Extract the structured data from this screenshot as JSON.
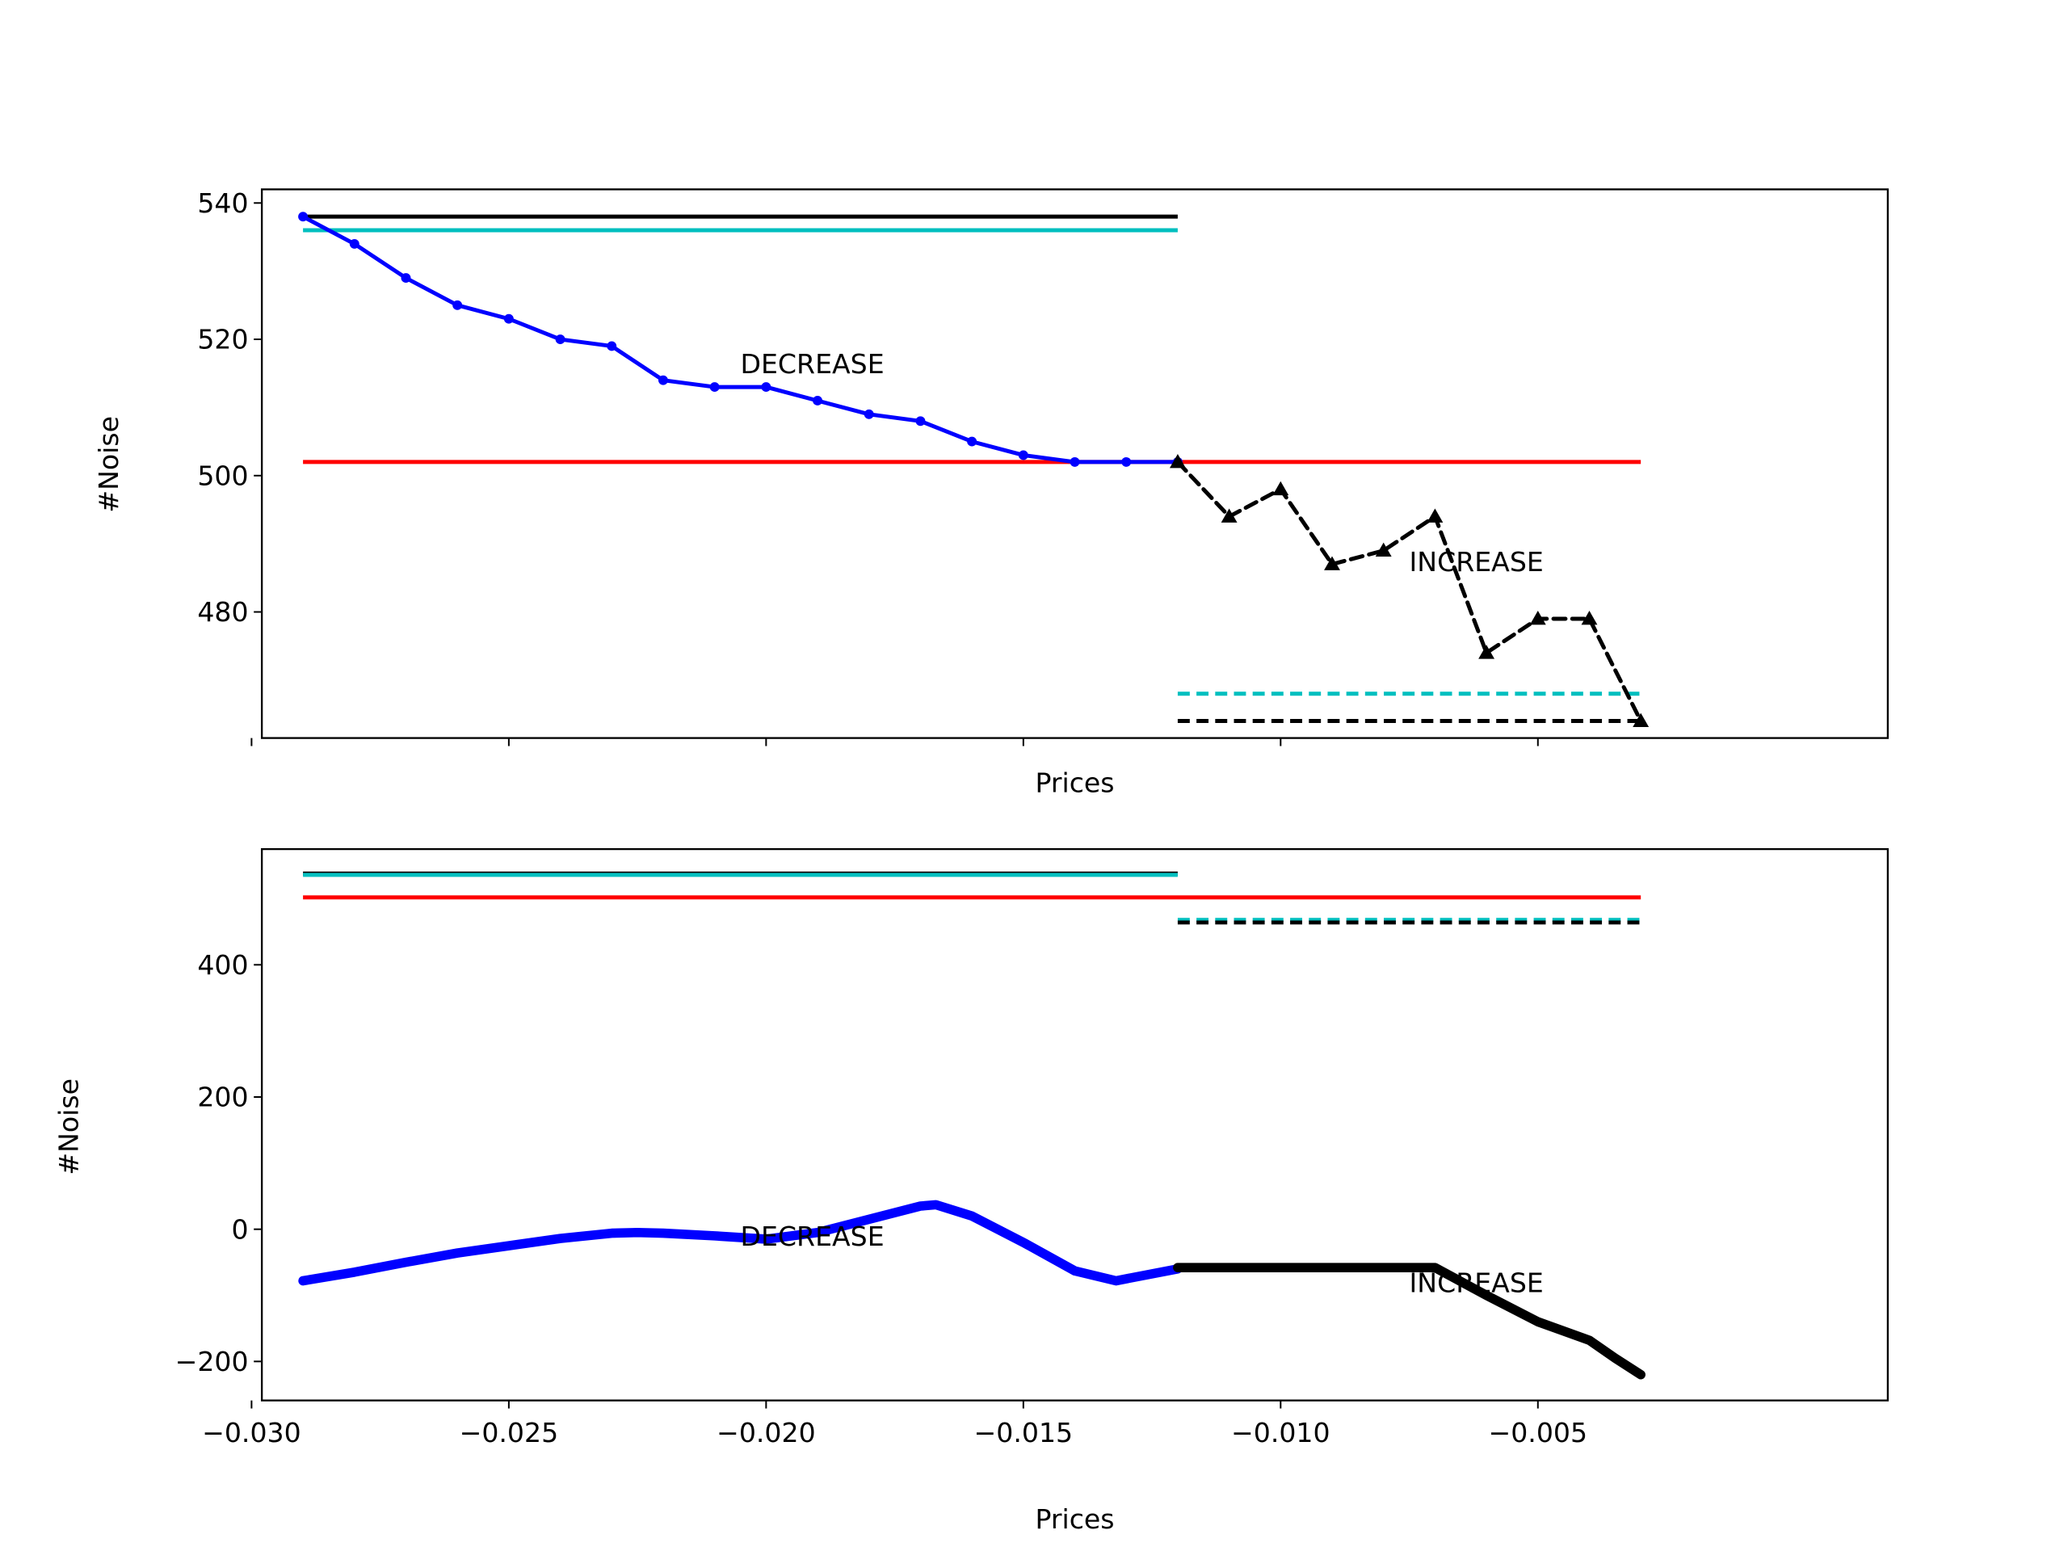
{
  "chart_data": [
    {
      "type": "line",
      "title": "",
      "xlabel": "Prices",
      "ylabel": "#Noise",
      "xlim": [
        -0.0298,
        0.0018
      ],
      "ylim": [
        461.5,
        542
      ],
      "xticks": [
        -0.03,
        -0.025,
        -0.02,
        -0.015,
        -0.01,
        -0.005
      ],
      "xtick_labels_visible": false,
      "yticks": [
        480,
        500,
        520,
        540
      ],
      "ytick_labels": [
        "480",
        "500",
        "520",
        "540"
      ],
      "grid": false,
      "annotations": [
        {
          "text": "DECREASE",
          "x": -0.0205,
          "y": 515
        },
        {
          "text": "INCREASE",
          "x": -0.0075,
          "y": 486
        }
      ],
      "series": [
        {
          "kind": "decrease",
          "color": "#0000ff",
          "style": "solid",
          "marker": "dot",
          "x": [
            -0.029,
            -0.028,
            -0.027,
            -0.026,
            -0.025,
            -0.024,
            -0.023,
            -0.022,
            -0.021,
            -0.02,
            -0.019,
            -0.018,
            -0.017,
            -0.016,
            -0.015,
            -0.014,
            -0.013,
            -0.012
          ],
          "y": [
            538,
            534,
            529,
            525,
            523,
            520,
            519,
            514,
            513,
            513,
            511,
            509,
            508,
            505,
            503,
            502,
            502,
            502
          ]
        },
        {
          "kind": "increase",
          "color": "#000000",
          "style": "dashed",
          "marker": "triangle",
          "x": [
            -0.012,
            -0.011,
            -0.01,
            -0.009,
            -0.008,
            -0.007,
            -0.006,
            -0.005,
            -0.004,
            -0.003
          ],
          "y": [
            502,
            494,
            498,
            487,
            489,
            494,
            474,
            479,
            479,
            464
          ]
        },
        {
          "kind": "hline",
          "color": "#000000",
          "style": "solid",
          "x": [
            -0.029,
            -0.012
          ],
          "y": 538
        },
        {
          "kind": "hline",
          "color": "#00bfbf",
          "style": "solid",
          "x": [
            -0.029,
            -0.012
          ],
          "y": 536
        },
        {
          "kind": "hline",
          "color": "#ff0000",
          "style": "solid",
          "x": [
            -0.029,
            -0.003
          ],
          "y": 502
        },
        {
          "kind": "hline",
          "color": "#00bfbf",
          "style": "dashed",
          "x": [
            -0.012,
            -0.003
          ],
          "y": 468
        },
        {
          "kind": "hline",
          "color": "#000000",
          "style": "dashed",
          "x": [
            -0.012,
            -0.003
          ],
          "y": 464
        }
      ]
    },
    {
      "type": "line",
      "title": "",
      "xlabel": "Prices",
      "ylabel": "#Noise",
      "xlim": [
        -0.0298,
        0.0018
      ],
      "ylim": [
        -259,
        575
      ],
      "xticks": [
        -0.03,
        -0.025,
        -0.02,
        -0.015,
        -0.01,
        -0.005
      ],
      "xtick_labels": [
        "−0.030",
        "−0.025",
        "−0.020",
        "−0.015",
        "−0.010",
        "−0.005"
      ],
      "yticks": [
        -200,
        0,
        200,
        400
      ],
      "ytick_labels": [
        "−200",
        "0",
        "200",
        "400"
      ],
      "grid": false,
      "annotations": [
        {
          "text": "DECREASE",
          "x": -0.0205,
          "y": -25
        },
        {
          "text": "INCREASE",
          "x": -0.0075,
          "y": -95
        }
      ],
      "series": [
        {
          "kind": "decrease",
          "color": "#0000ff",
          "style": "solid",
          "marker": "dense",
          "x": [
            -0.029,
            -0.028,
            -0.027,
            -0.026,
            -0.025,
            -0.024,
            -0.023,
            -0.0225,
            -0.022,
            -0.021,
            -0.02,
            -0.019,
            -0.018,
            -0.017,
            -0.0167,
            -0.016,
            -0.015,
            -0.014,
            -0.0132,
            -0.012
          ],
          "y": [
            -78,
            -65,
            -50,
            -36,
            -25,
            -14,
            -6,
            -5,
            -6,
            -10,
            -15,
            -5,
            15,
            35,
            37,
            20,
            -20,
            -63,
            -78,
            -60
          ]
        },
        {
          "kind": "increase",
          "color": "#000000",
          "style": "dashed",
          "marker": "dense",
          "x": [
            -0.012,
            -0.011,
            -0.01,
            -0.009,
            -0.008,
            -0.007,
            -0.006,
            -0.005,
            -0.004,
            -0.0035,
            -0.003
          ],
          "y": [
            -58,
            -58,
            -58,
            -58,
            -58,
            -58,
            -100,
            -140,
            -168,
            -195,
            -220
          ]
        },
        {
          "kind": "hline",
          "color": "#000000",
          "style": "solid",
          "x": [
            -0.029,
            -0.012
          ],
          "y": 538
        },
        {
          "kind": "hline",
          "color": "#00bfbf",
          "style": "solid",
          "x": [
            -0.029,
            -0.012
          ],
          "y": 536
        },
        {
          "kind": "hline",
          "color": "#ff0000",
          "style": "solid",
          "x": [
            -0.029,
            -0.003
          ],
          "y": 502
        },
        {
          "kind": "hline",
          "color": "#00bfbf",
          "style": "dashed",
          "x": [
            -0.012,
            -0.003
          ],
          "y": 468
        },
        {
          "kind": "hline",
          "color": "#000000",
          "style": "dashed",
          "x": [
            -0.012,
            -0.003
          ],
          "y": 464
        }
      ]
    }
  ]
}
